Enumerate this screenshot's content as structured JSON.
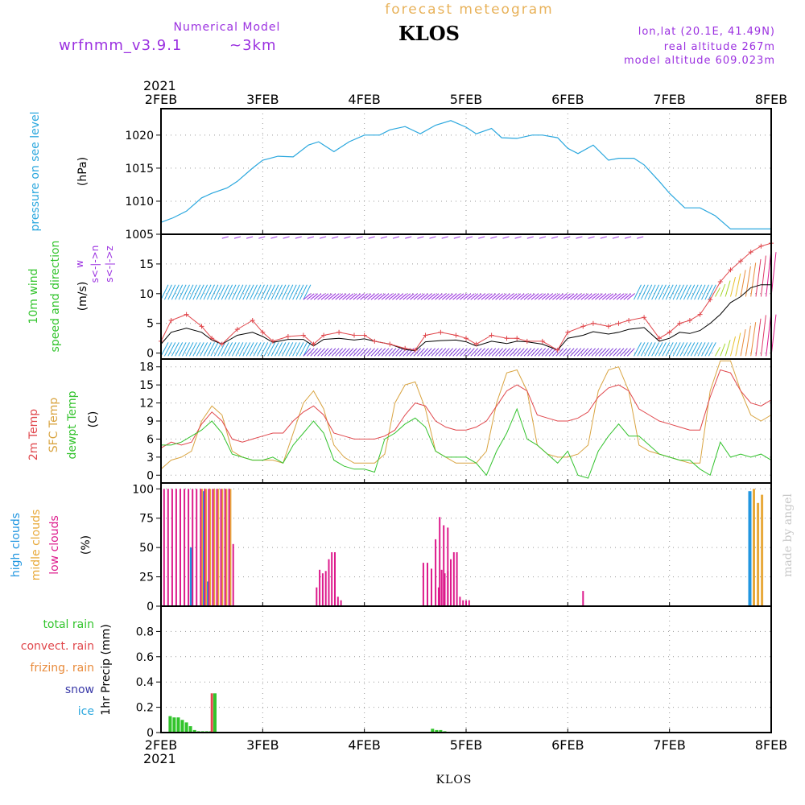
{
  "header": {
    "title": "forecast meteogram",
    "station": "KLOS",
    "model_label": "Numerical Model",
    "model_name": "wrfnmm_v3.9.1",
    "resolution": "~3km",
    "coords": "lon,lat (20.1E, 41.49N)",
    "real_altitude": "real altitude 267m",
    "model_altitude": "model altitude  609.023m",
    "credit": "made by angel"
  },
  "footer": {
    "station": "KLOS"
  },
  "colors": {
    "pressure": "#2aa7de",
    "temp2m": "#e0474c",
    "sfc_temp": "#d9a441",
    "dewpt": "#34c32e",
    "high_clouds": "#2196e0",
    "mid_clouds": "#e8a93a",
    "low_clouds": "#dd1b8c",
    "total_rain": "#32c42c",
    "convect_rain": "#e0474c",
    "frizing_rain": "#e88a3a",
    "snow": "#3a3aa8",
    "ice": "#2aa7de",
    "wind_gust": "#e0474c",
    "wind_mean": "#000000",
    "purple": "#9b30e0",
    "title_orange": "#e8b25a"
  },
  "chart_data": [
    {
      "type": "line",
      "panel": "pressure",
      "ylabel": [
        "pressure on see level",
        "(hPa)"
      ],
      "year": "2021",
      "x_ticks": [
        "2FEB",
        "3FEB",
        "4FEB",
        "5FEB",
        "6FEB",
        "7FEB",
        "8FEB"
      ],
      "ylim": [
        1005,
        1024
      ],
      "y_ticks": [
        1005,
        1010,
        1015,
        1020
      ],
      "grid": true,
      "series": [
        {
          "key": "pressure",
          "x": [
            0,
            0.12,
            0.25,
            0.4,
            0.5,
            0.65,
            0.75,
            0.9,
            1.0,
            1.15,
            1.3,
            1.45,
            1.55,
            1.7,
            1.85,
            2.0,
            2.15,
            2.25,
            2.4,
            2.55,
            2.7,
            2.85,
            3.0,
            3.1,
            3.25,
            3.35,
            3.5,
            3.65,
            3.75,
            3.9,
            4.0,
            4.1,
            4.25,
            4.4,
            4.5,
            4.65,
            4.75,
            4.9,
            5.0,
            5.15,
            5.3,
            5.45,
            5.6,
            5.75,
            5.9,
            6.0
          ],
          "values": [
            1006.8,
            1007.5,
            1008.5,
            1010.5,
            1011.2,
            1012,
            1013,
            1015,
            1016.2,
            1016.8,
            1016.7,
            1018.5,
            1019,
            1017.5,
            1019,
            1020,
            1020,
            1020.8,
            1021.3,
            1020.2,
            1021.5,
            1022.2,
            1021.2,
            1020.2,
            1021,
            1019.6,
            1019.5,
            1020,
            1020,
            1019.6,
            1018,
            1017.2,
            1018.5,
            1016.2,
            1016.5,
            1016.5,
            1015.5,
            1013,
            1011.2,
            1009,
            1009,
            1007.8,
            1005.8,
            1005.8,
            1005.8,
            1005.8
          ]
        }
      ]
    },
    {
      "type": "line",
      "panel": "wind",
      "ylabel": [
        "10m wind",
        "speed and direction",
        "(m/s)"
      ],
      "direction_key": [
        "w",
        "s<-|->n",
        "s<-|->z"
      ],
      "ylim": [
        -1,
        20
      ],
      "y_ticks": [
        0,
        5,
        10,
        15
      ],
      "grid": true,
      "series": [
        {
          "key": "wind_mean",
          "x": [
            0,
            0.1,
            0.25,
            0.4,
            0.5,
            0.6,
            0.75,
            0.9,
            1.0,
            1.1,
            1.25,
            1.4,
            1.5,
            1.6,
            1.75,
            1.9,
            2.0,
            2.1,
            2.25,
            2.4,
            2.5,
            2.6,
            2.75,
            2.9,
            3.0,
            3.1,
            3.25,
            3.4,
            3.5,
            3.6,
            3.75,
            3.9,
            4.0,
            4.15,
            4.25,
            4.4,
            4.5,
            4.6,
            4.75,
            4.9,
            5.0,
            5.1,
            5.2,
            5.3,
            5.4,
            5.5,
            5.6,
            5.7,
            5.8,
            5.9,
            6.0
          ],
          "values": [
            1.5,
            3.5,
            4.2,
            3.5,
            2.2,
            1.5,
            3,
            3.5,
            2.8,
            1.8,
            2.3,
            2.3,
            1.2,
            2.3,
            2.5,
            2.2,
            2.4,
            2,
            1.5,
            0.6,
            0.4,
            1.9,
            2.1,
            2.2,
            1.9,
            1.2,
            2,
            1.6,
            2,
            1.9,
            1.5,
            0.5,
            2.5,
            3,
            3.6,
            3.2,
            3.5,
            4,
            4.3,
            2,
            2.5,
            3.5,
            3.3,
            3.8,
            5,
            6.5,
            8.5,
            9.5,
            11,
            11.5,
            11.5
          ]
        },
        {
          "key": "wind_gust",
          "x": [
            0,
            0.1,
            0.25,
            0.4,
            0.5,
            0.6,
            0.75,
            0.9,
            1.0,
            1.1,
            1.25,
            1.4,
            1.5,
            1.6,
            1.75,
            1.9,
            2.0,
            2.1,
            2.25,
            2.4,
            2.5,
            2.6,
            2.75,
            2.9,
            3.0,
            3.1,
            3.25,
            3.4,
            3.5,
            3.6,
            3.75,
            3.9,
            4.0,
            4.15,
            4.25,
            4.4,
            4.5,
            4.6,
            4.75,
            4.9,
            5.0,
            5.1,
            5.2,
            5.3,
            5.4,
            5.5,
            5.6,
            5.7,
            5.8,
            5.9,
            6.0
          ],
          "values": [
            2,
            5.5,
            6.5,
            4.5,
            2.5,
            1.5,
            4,
            5.5,
            3.5,
            2,
            2.8,
            3,
            1.5,
            3,
            3.5,
            3,
            3,
            2,
            1.5,
            0.8,
            0.5,
            3,
            3.5,
            3,
            2.5,
            1.5,
            3,
            2.5,
            2.5,
            2,
            2,
            0.5,
            3.5,
            4.5,
            5,
            4.5,
            5,
            5.5,
            6,
            2.5,
            3.5,
            5,
            5.5,
            6.5,
            9,
            12,
            14,
            15.5,
            17,
            18,
            18.5
          ]
        }
      ]
    },
    {
      "type": "line",
      "panel": "temperature",
      "ylabel": [
        "2m Temp",
        "SFC Temp",
        "dewpt Temp",
        "(C)"
      ],
      "ylim": [
        -1.3,
        19.3
      ],
      "y_ticks": [
        0,
        3,
        6,
        9,
        12,
        15,
        18
      ],
      "grid": true,
      "series": [
        {
          "key": "temp2m",
          "x": [
            0,
            0.1,
            0.2,
            0.3,
            0.4,
            0.5,
            0.6,
            0.7,
            0.8,
            0.9,
            1.0,
            1.1,
            1.2,
            1.3,
            1.4,
            1.5,
            1.6,
            1.7,
            1.8,
            1.9,
            2.0,
            2.1,
            2.2,
            2.3,
            2.4,
            2.5,
            2.6,
            2.7,
            2.8,
            2.9,
            3.0,
            3.1,
            3.2,
            3.3,
            3.4,
            3.5,
            3.6,
            3.7,
            3.8,
            3.9,
            4.0,
            4.1,
            4.2,
            4.3,
            4.4,
            4.5,
            4.6,
            4.7,
            4.8,
            4.9,
            5.0,
            5.1,
            5.2,
            5.3,
            5.4,
            5.5,
            5.6,
            5.7,
            5.8,
            5.9,
            6.0
          ],
          "values": [
            4.5,
            5.5,
            5,
            5.5,
            8.5,
            10.5,
            9,
            6,
            5.5,
            6,
            6.5,
            7,
            7,
            9,
            10.5,
            11.5,
            10,
            7,
            6.5,
            6,
            6,
            6,
            6.5,
            7.5,
            10,
            12,
            11.5,
            9,
            8,
            7.5,
            7.5,
            8,
            9,
            11.5,
            14,
            15,
            14,
            10,
            9.5,
            9,
            9,
            9.5,
            10.5,
            13,
            14.5,
            15,
            14,
            11,
            10,
            9,
            8.5,
            8,
            7.5,
            7.5,
            13,
            17.5,
            17,
            14,
            12,
            11.5,
            12.5
          ]
        },
        {
          "key": "sfc_temp",
          "x": [
            0,
            0.1,
            0.2,
            0.3,
            0.4,
            0.5,
            0.6,
            0.7,
            0.8,
            0.9,
            1.0,
            1.1,
            1.2,
            1.3,
            1.4,
            1.5,
            1.6,
            1.7,
            1.8,
            1.9,
            2.0,
            2.1,
            2.2,
            2.3,
            2.4,
            2.5,
            2.6,
            2.7,
            2.8,
            2.9,
            3.0,
            3.1,
            3.2,
            3.3,
            3.4,
            3.5,
            3.6,
            3.7,
            3.8,
            3.9,
            4.0,
            4.1,
            4.2,
            4.3,
            4.4,
            4.5,
            4.6,
            4.7,
            4.8,
            4.9,
            5.0,
            5.1,
            5.2,
            5.3,
            5.4,
            5.5,
            5.6,
            5.7,
            5.8,
            5.9,
            6.0
          ],
          "values": [
            1,
            2.5,
            3,
            4,
            9,
            11.5,
            10,
            4,
            3,
            2.5,
            2.5,
            2.5,
            2,
            7,
            12,
            14,
            11,
            5,
            3,
            2,
            2,
            2,
            3.5,
            12,
            15,
            15.5,
            11,
            4,
            3,
            2,
            2,
            2,
            4,
            12,
            17,
            17.5,
            14,
            5,
            3.5,
            3,
            3,
            3.5,
            5,
            14,
            17.5,
            18,
            14,
            5,
            4,
            3.5,
            3,
            2.5,
            2,
            2,
            14,
            19,
            19,
            14,
            10,
            9,
            10
          ]
        },
        {
          "key": "dewpt",
          "x": [
            0,
            0.1,
            0.2,
            0.3,
            0.4,
            0.5,
            0.6,
            0.7,
            0.8,
            0.9,
            1.0,
            1.1,
            1.2,
            1.3,
            1.4,
            1.5,
            1.6,
            1.7,
            1.8,
            1.9,
            2.0,
            2.1,
            2.2,
            2.3,
            2.4,
            2.5,
            2.6,
            2.7,
            2.8,
            2.9,
            3.0,
            3.1,
            3.2,
            3.3,
            3.4,
            3.5,
            3.6,
            3.7,
            3.8,
            3.9,
            4.0,
            4.1,
            4.2,
            4.3,
            4.4,
            4.5,
            4.6,
            4.7,
            4.8,
            4.9,
            5.0,
            5.1,
            5.2,
            5.3,
            5.4,
            5.5,
            5.6,
            5.7,
            5.8,
            5.9,
            6.0
          ],
          "values": [
            5,
            5,
            5.5,
            6.5,
            7.5,
            9,
            7,
            3.5,
            3,
            2.5,
            2.5,
            3,
            2,
            5,
            7,
            9,
            7,
            2.5,
            1.5,
            1,
            1,
            0.5,
            6,
            7,
            8.5,
            9.5,
            8,
            4,
            3,
            3,
            3,
            2,
            0,
            4,
            7,
            11,
            6,
            5,
            3.5,
            2,
            4,
            0,
            -0.5,
            4,
            6.5,
            8.5,
            6.5,
            6.5,
            5,
            3.5,
            3,
            2.5,
            2.5,
            1,
            0,
            5.5,
            3,
            3.5,
            3,
            3.5,
            2.5
          ]
        }
      ]
    },
    {
      "type": "bar",
      "panel": "clouds",
      "ylabel": [
        "high clouds",
        "midle clouds",
        "low clouds",
        "(%)"
      ],
      "ylim": [
        0,
        105
      ],
      "y_ticks": [
        0,
        25,
        50,
        75,
        100
      ],
      "grid": true,
      "series": [
        {
          "key": "low_clouds",
          "x": [
            0.03,
            0.07,
            0.11,
            0.15,
            0.19,
            0.23,
            0.27,
            0.31,
            0.35,
            0.39,
            0.43,
            0.47,
            0.51,
            0.55,
            0.59,
            0.63,
            0.67,
            0.71,
            2.73,
            2.76,
            2.79,
            2.82,
            2.85,
            2.88,
            2.91,
            2.94,
            2.97,
            3.0,
            3.03,
            4.15
          ],
          "values": [
            100,
            100,
            100,
            100,
            100,
            100,
            100,
            100,
            100,
            100,
            100,
            100,
            100,
            100,
            100,
            100,
            100,
            53,
            16,
            31,
            28,
            30,
            40,
            46,
            46,
            8,
            5,
            5,
            5,
            13
          ]
        },
        {
          "key": "low_clouds_b",
          "x": [
            1.53,
            1.56,
            1.59,
            1.62,
            1.65,
            1.68,
            1.71,
            1.74,
            1.77,
            1.8,
            2.58,
            2.62,
            2.66,
            2.7,
            2.74,
            2.78,
            2.82
          ],
          "values": [
            16,
            31,
            28,
            30,
            40,
            46,
            46,
            8,
            5,
            0,
            37,
            37,
            32,
            57,
            76,
            69,
            67
          ]
        },
        {
          "key": "mid_clouds",
          "x": [
            0.4,
            0.44,
            0.48,
            0.52,
            0.56,
            0.6,
            0.64,
            0.68,
            5.83,
            5.87,
            5.91
          ],
          "values": [
            100,
            100,
            100,
            100,
            100,
            100,
            100,
            100,
            100,
            88,
            95
          ]
        },
        {
          "key": "high_clouds",
          "x": [
            0.3,
            0.42,
            0.46,
            5.79
          ],
          "values": [
            50,
            98,
            21,
            98
          ]
        }
      ]
    },
    {
      "type": "bar",
      "panel": "precip",
      "ylabel": [
        "total rain",
        "convect. rain",
        "frizing. rain",
        "snow",
        "ice",
        "1hr Precip (mm)"
      ],
      "ylim": [
        0,
        1.0
      ],
      "y_ticks": [
        0,
        0.2,
        0.4,
        0.6,
        0.8
      ],
      "grid": true,
      "series": [
        {
          "key": "total_rain",
          "x": [
            0.09,
            0.13,
            0.17,
            0.21,
            0.25,
            0.29,
            0.33,
            0.37,
            0.41,
            0.45,
            0.49,
            0.53,
            2.67,
            2.71,
            2.75,
            2.79
          ],
          "values": [
            0.13,
            0.12,
            0.12,
            0.1,
            0.08,
            0.05,
            0.02,
            0.01,
            0.01,
            0.01,
            0.01,
            0.31,
            0.03,
            0.02,
            0.02,
            0.01
          ]
        },
        {
          "key": "convect_rain",
          "x": [
            0.5
          ],
          "values": [
            0.31
          ]
        }
      ]
    }
  ]
}
